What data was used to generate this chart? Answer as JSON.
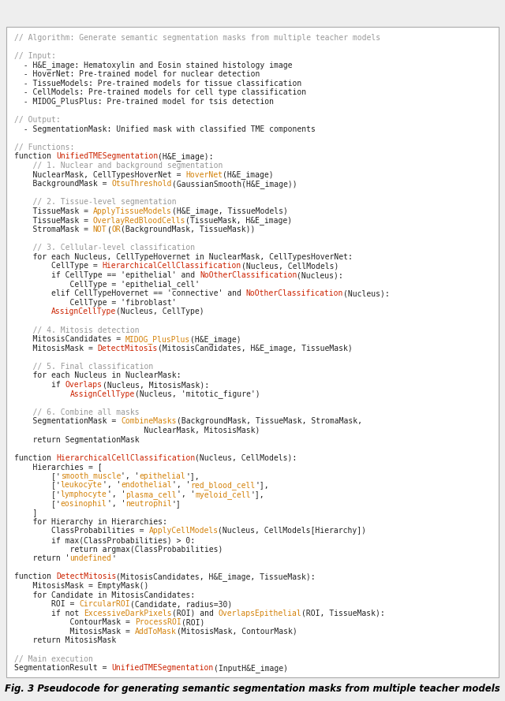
{
  "title": "Fig. 3 Pseudocode for generating semantic segmentation masks from multiple teacher models",
  "background_color": "#eeeeee",
  "box_color": "#ffffff",
  "border_color": "#aaaaaa",
  "font_color_normal": "#222222",
  "font_color_comment": "#999999",
  "font_color_orange": "#d4820a",
  "font_color_function": "#cc2200",
  "font_size": 7.0,
  "caption_font_size": 8.5,
  "lines": [
    [
      {
        "t": "// Algorithm: Generate semantic segmentation masks from multiple teacher models",
        "c": "K"
      }
    ],
    [],
    [
      {
        "t": "// Input:",
        "c": "K"
      }
    ],
    [
      {
        "t": "  - H&E_image: Hematoxylin and Eosin stained histology image",
        "c": "N"
      }
    ],
    [
      {
        "t": "  - HoverNet: Pre-trained model for nuclear detection",
        "c": "N"
      }
    ],
    [
      {
        "t": "  - TissueModels: Pre-trained models for tissue classification",
        "c": "N"
      }
    ],
    [
      {
        "t": "  - CellModels: Pre-trained models for cell type classification",
        "c": "N"
      }
    ],
    [
      {
        "t": "  - MIDOG_PlusPlus: Pre-trained model for tsis detection",
        "c": "N"
      }
    ],
    [],
    [
      {
        "t": "// Output:",
        "c": "K"
      }
    ],
    [
      {
        "t": "  - SegmentationMask: Unified mask with classified TME components",
        "c": "N"
      }
    ],
    [],
    [
      {
        "t": "// Functions:",
        "c": "K"
      }
    ],
    [
      {
        "t": "function ",
        "c": "N"
      },
      {
        "t": "UnifiedTMESegmentation",
        "c": "F"
      },
      {
        "t": "(H&E_image):",
        "c": "N"
      }
    ],
    [
      {
        "t": "    // 1. Nuclear and background segmentation",
        "c": "K"
      }
    ],
    [
      {
        "t": "    NuclearMask, CellTypesHoverNet = ",
        "c": "N"
      },
      {
        "t": "HoverNet",
        "c": "O"
      },
      {
        "t": "(H&E_image)",
        "c": "N"
      }
    ],
    [
      {
        "t": "    BackgroundMask = ",
        "c": "N"
      },
      {
        "t": "OtsuThreshold",
        "c": "O"
      },
      {
        "t": "(GaussianSmooth(H&E_image))",
        "c": "N"
      }
    ],
    [],
    [
      {
        "t": "    // 2. Tissue-level segmentation",
        "c": "K"
      }
    ],
    [
      {
        "t": "    TissueMask = ",
        "c": "N"
      },
      {
        "t": "ApplyTissueModels",
        "c": "O"
      },
      {
        "t": "(H&E_image, TissueModels)",
        "c": "N"
      }
    ],
    [
      {
        "t": "    TissueMask = ",
        "c": "N"
      },
      {
        "t": "OverlayRedBloodCells",
        "c": "O"
      },
      {
        "t": "(TissueMask, H&E_image)",
        "c": "N"
      }
    ],
    [
      {
        "t": "    StromaMask = ",
        "c": "N"
      },
      {
        "t": "NOT",
        "c": "O"
      },
      {
        "t": "(",
        "c": "N"
      },
      {
        "t": "OR",
        "c": "O"
      },
      {
        "t": "(BackgroundMask, TissueMask))",
        "c": "N"
      }
    ],
    [],
    [
      {
        "t": "    // 3. Cellular-level classification",
        "c": "K"
      }
    ],
    [
      {
        "t": "    for each Nucleus, CellTypeHovernet in NuclearMask, CellTypesHoverNet:",
        "c": "N"
      }
    ],
    [
      {
        "t": "        CellType = ",
        "c": "N"
      },
      {
        "t": "HierarchicalCellClassification",
        "c": "F"
      },
      {
        "t": "(Nucleus, CellModels)",
        "c": "N"
      }
    ],
    [
      {
        "t": "        if CellType == 'epithelial' and ",
        "c": "N"
      },
      {
        "t": "NoOtherClassification",
        "c": "F"
      },
      {
        "t": "(Nucleus):",
        "c": "N"
      }
    ],
    [
      {
        "t": "            CellType = 'epithelial_cell'",
        "c": "N"
      }
    ],
    [
      {
        "t": "        elif CellTypeHovernet == 'connective' and ",
        "c": "N"
      },
      {
        "t": "NoOtherClassification",
        "c": "F"
      },
      {
        "t": "(Nucleus):",
        "c": "N"
      }
    ],
    [
      {
        "t": "            CellType = 'fibroblast'",
        "c": "N"
      }
    ],
    [
      {
        "t": "        ",
        "c": "N"
      },
      {
        "t": "AssignCellType",
        "c": "F"
      },
      {
        "t": "(Nucleus, CellType)",
        "c": "N"
      }
    ],
    [],
    [
      {
        "t": "    // 4. Mitosis detection",
        "c": "K"
      }
    ],
    [
      {
        "t": "    MitosisCandidates = ",
        "c": "N"
      },
      {
        "t": "MIDOG_PlusPlus",
        "c": "O"
      },
      {
        "t": "(H&E_image)",
        "c": "N"
      }
    ],
    [
      {
        "t": "    MitosisMask = ",
        "c": "N"
      },
      {
        "t": "DetectMitosis",
        "c": "F"
      },
      {
        "t": "(MitosisCandidates, H&E_image, TissueMask)",
        "c": "N"
      }
    ],
    [],
    [
      {
        "t": "    // 5. Final classification",
        "c": "K"
      }
    ],
    [
      {
        "t": "    for each Nucleus in NuclearMask:",
        "c": "N"
      }
    ],
    [
      {
        "t": "        if ",
        "c": "N"
      },
      {
        "t": "Overlaps",
        "c": "F"
      },
      {
        "t": "(Nucleus, MitosisMask):",
        "c": "N"
      }
    ],
    [
      {
        "t": "            ",
        "c": "N"
      },
      {
        "t": "AssignCellType",
        "c": "F"
      },
      {
        "t": "(Nucleus, 'mitotic_figure')",
        "c": "N"
      }
    ],
    [],
    [
      {
        "t": "    // 6. Combine all masks",
        "c": "K"
      }
    ],
    [
      {
        "t": "    SegmentationMask = ",
        "c": "N"
      },
      {
        "t": "CombineMasks",
        "c": "O"
      },
      {
        "t": "(BackgroundMask, TissueMask, StromaMask,",
        "c": "N"
      }
    ],
    [
      {
        "t": "                            NuclearMask, MitosisMask)",
        "c": "N"
      }
    ],
    [
      {
        "t": "    return SegmentationMask",
        "c": "N"
      }
    ],
    [],
    [
      {
        "t": "function ",
        "c": "N"
      },
      {
        "t": "HierarchicalCellClassification",
        "c": "F"
      },
      {
        "t": "(Nucleus, CellModels):",
        "c": "N"
      }
    ],
    [
      {
        "t": "    Hierarchies = [",
        "c": "N"
      }
    ],
    [
      {
        "t": "        ['",
        "c": "N"
      },
      {
        "t": "smooth_muscle",
        "c": "O"
      },
      {
        "t": "', '",
        "c": "N"
      },
      {
        "t": "epithelial",
        "c": "O"
      },
      {
        "t": "'],",
        "c": "N"
      }
    ],
    [
      {
        "t": "        ['",
        "c": "N"
      },
      {
        "t": "leukocyte",
        "c": "O"
      },
      {
        "t": "', '",
        "c": "N"
      },
      {
        "t": "endothelial",
        "c": "O"
      },
      {
        "t": "', '",
        "c": "N"
      },
      {
        "t": "red_blood_cell",
        "c": "O"
      },
      {
        "t": "'],",
        "c": "N"
      }
    ],
    [
      {
        "t": "        ['",
        "c": "N"
      },
      {
        "t": "lymphocyte",
        "c": "O"
      },
      {
        "t": "', '",
        "c": "N"
      },
      {
        "t": "plasma_cell",
        "c": "O"
      },
      {
        "t": "', '",
        "c": "N"
      },
      {
        "t": "myeloid_cell",
        "c": "O"
      },
      {
        "t": "'],",
        "c": "N"
      }
    ],
    [
      {
        "t": "        ['",
        "c": "N"
      },
      {
        "t": "eosinophil",
        "c": "O"
      },
      {
        "t": "', '",
        "c": "N"
      },
      {
        "t": "neutrophil",
        "c": "O"
      },
      {
        "t": "']",
        "c": "N"
      }
    ],
    [
      {
        "t": "    ]",
        "c": "N"
      }
    ],
    [
      {
        "t": "    for Hierarchy in Hierarchies:",
        "c": "N"
      }
    ],
    [
      {
        "t": "        ClassProbabilities = ",
        "c": "N"
      },
      {
        "t": "ApplyCellModels",
        "c": "O"
      },
      {
        "t": "(Nucleus, CellModels[Hierarchy])",
        "c": "N"
      }
    ],
    [
      {
        "t": "        if max(ClassProbabilities) > 0:",
        "c": "N"
      }
    ],
    [
      {
        "t": "            return argmax(ClassProbabilities)",
        "c": "N"
      }
    ],
    [
      {
        "t": "    return '",
        "c": "N"
      },
      {
        "t": "undefined",
        "c": "O"
      },
      {
        "t": "'",
        "c": "N"
      }
    ],
    [],
    [
      {
        "t": "function ",
        "c": "N"
      },
      {
        "t": "DetectMitosis",
        "c": "F"
      },
      {
        "t": "(MitosisCandidates, H&E_image, TissueMask):",
        "c": "N"
      }
    ],
    [
      {
        "t": "    MitosisMask = EmptyMask()",
        "c": "N"
      }
    ],
    [
      {
        "t": "    for Candidate in MitosisCandidates:",
        "c": "N"
      }
    ],
    [
      {
        "t": "        ROI = ",
        "c": "N"
      },
      {
        "t": "CircularROI",
        "c": "O"
      },
      {
        "t": "(Candidate, radius=30)",
        "c": "N"
      }
    ],
    [
      {
        "t": "        if not ",
        "c": "N"
      },
      {
        "t": "ExcessiveDarkPixels",
        "c": "O"
      },
      {
        "t": "(ROI) and ",
        "c": "N"
      },
      {
        "t": "OverlapsEpithelial",
        "c": "O"
      },
      {
        "t": "(ROI, TissueMask):",
        "c": "N"
      }
    ],
    [
      {
        "t": "            ContourMask = ",
        "c": "N"
      },
      {
        "t": "ProcessROI",
        "c": "O"
      },
      {
        "t": "(ROI)",
        "c": "N"
      }
    ],
    [
      {
        "t": "            MitosisMask = ",
        "c": "N"
      },
      {
        "t": "AddToMask",
        "c": "O"
      },
      {
        "t": "(MitosisMask, ContourMask)",
        "c": "N"
      }
    ],
    [
      {
        "t": "    return MitosisMask",
        "c": "N"
      }
    ],
    [],
    [
      {
        "t": "// Main execution",
        "c": "K"
      }
    ],
    [
      {
        "t": "SegmentationResult = ",
        "c": "N"
      },
      {
        "t": "UnifiedTMESegmentation",
        "c": "F"
      },
      {
        "t": "(InputH&E_image)",
        "c": "N"
      }
    ]
  ]
}
